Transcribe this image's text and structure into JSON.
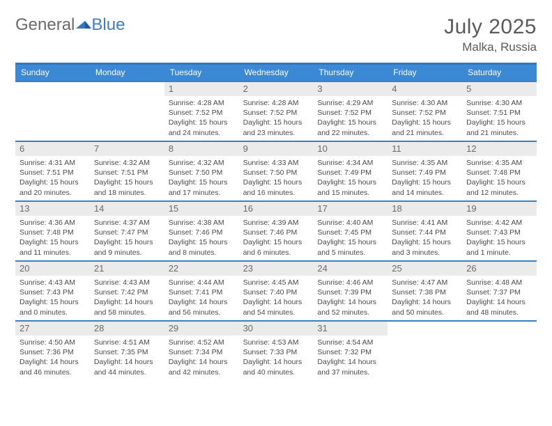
{
  "brand": {
    "part1": "General",
    "part2": "Blue"
  },
  "title": "July 2025",
  "location": "Malka, Russia",
  "colors": {
    "header_bg": "#3b88d4",
    "accent": "#2f78c4",
    "daynum_bg": "#ebebeb",
    "text": "#4a4a4a",
    "muted": "#6a6a6a"
  },
  "day_names": [
    "Sunday",
    "Monday",
    "Tuesday",
    "Wednesday",
    "Thursday",
    "Friday",
    "Saturday"
  ],
  "weeks": [
    [
      null,
      null,
      {
        "n": "1",
        "sunrise": "Sunrise: 4:28 AM",
        "sunset": "Sunset: 7:52 PM",
        "day1": "Daylight: 15 hours",
        "day2": "and 24 minutes."
      },
      {
        "n": "2",
        "sunrise": "Sunrise: 4:28 AM",
        "sunset": "Sunset: 7:52 PM",
        "day1": "Daylight: 15 hours",
        "day2": "and 23 minutes."
      },
      {
        "n": "3",
        "sunrise": "Sunrise: 4:29 AM",
        "sunset": "Sunset: 7:52 PM",
        "day1": "Daylight: 15 hours",
        "day2": "and 22 minutes."
      },
      {
        "n": "4",
        "sunrise": "Sunrise: 4:30 AM",
        "sunset": "Sunset: 7:52 PM",
        "day1": "Daylight: 15 hours",
        "day2": "and 21 minutes."
      },
      {
        "n": "5",
        "sunrise": "Sunrise: 4:30 AM",
        "sunset": "Sunset: 7:51 PM",
        "day1": "Daylight: 15 hours",
        "day2": "and 21 minutes."
      }
    ],
    [
      {
        "n": "6",
        "sunrise": "Sunrise: 4:31 AM",
        "sunset": "Sunset: 7:51 PM",
        "day1": "Daylight: 15 hours",
        "day2": "and 20 minutes."
      },
      {
        "n": "7",
        "sunrise": "Sunrise: 4:32 AM",
        "sunset": "Sunset: 7:51 PM",
        "day1": "Daylight: 15 hours",
        "day2": "and 18 minutes."
      },
      {
        "n": "8",
        "sunrise": "Sunrise: 4:32 AM",
        "sunset": "Sunset: 7:50 PM",
        "day1": "Daylight: 15 hours",
        "day2": "and 17 minutes."
      },
      {
        "n": "9",
        "sunrise": "Sunrise: 4:33 AM",
        "sunset": "Sunset: 7:50 PM",
        "day1": "Daylight: 15 hours",
        "day2": "and 16 minutes."
      },
      {
        "n": "10",
        "sunrise": "Sunrise: 4:34 AM",
        "sunset": "Sunset: 7:49 PM",
        "day1": "Daylight: 15 hours",
        "day2": "and 15 minutes."
      },
      {
        "n": "11",
        "sunrise": "Sunrise: 4:35 AM",
        "sunset": "Sunset: 7:49 PM",
        "day1": "Daylight: 15 hours",
        "day2": "and 14 minutes."
      },
      {
        "n": "12",
        "sunrise": "Sunrise: 4:35 AM",
        "sunset": "Sunset: 7:48 PM",
        "day1": "Daylight: 15 hours",
        "day2": "and 12 minutes."
      }
    ],
    [
      {
        "n": "13",
        "sunrise": "Sunrise: 4:36 AM",
        "sunset": "Sunset: 7:48 PM",
        "day1": "Daylight: 15 hours",
        "day2": "and 11 minutes."
      },
      {
        "n": "14",
        "sunrise": "Sunrise: 4:37 AM",
        "sunset": "Sunset: 7:47 PM",
        "day1": "Daylight: 15 hours",
        "day2": "and 9 minutes."
      },
      {
        "n": "15",
        "sunrise": "Sunrise: 4:38 AM",
        "sunset": "Sunset: 7:46 PM",
        "day1": "Daylight: 15 hours",
        "day2": "and 8 minutes."
      },
      {
        "n": "16",
        "sunrise": "Sunrise: 4:39 AM",
        "sunset": "Sunset: 7:46 PM",
        "day1": "Daylight: 15 hours",
        "day2": "and 6 minutes."
      },
      {
        "n": "17",
        "sunrise": "Sunrise: 4:40 AM",
        "sunset": "Sunset: 7:45 PM",
        "day1": "Daylight: 15 hours",
        "day2": "and 5 minutes."
      },
      {
        "n": "18",
        "sunrise": "Sunrise: 4:41 AM",
        "sunset": "Sunset: 7:44 PM",
        "day1": "Daylight: 15 hours",
        "day2": "and 3 minutes."
      },
      {
        "n": "19",
        "sunrise": "Sunrise: 4:42 AM",
        "sunset": "Sunset: 7:43 PM",
        "day1": "Daylight: 15 hours",
        "day2": "and 1 minute."
      }
    ],
    [
      {
        "n": "20",
        "sunrise": "Sunrise: 4:43 AM",
        "sunset": "Sunset: 7:43 PM",
        "day1": "Daylight: 15 hours",
        "day2": "and 0 minutes."
      },
      {
        "n": "21",
        "sunrise": "Sunrise: 4:43 AM",
        "sunset": "Sunset: 7:42 PM",
        "day1": "Daylight: 14 hours",
        "day2": "and 58 minutes."
      },
      {
        "n": "22",
        "sunrise": "Sunrise: 4:44 AM",
        "sunset": "Sunset: 7:41 PM",
        "day1": "Daylight: 14 hours",
        "day2": "and 56 minutes."
      },
      {
        "n": "23",
        "sunrise": "Sunrise: 4:45 AM",
        "sunset": "Sunset: 7:40 PM",
        "day1": "Daylight: 14 hours",
        "day2": "and 54 minutes."
      },
      {
        "n": "24",
        "sunrise": "Sunrise: 4:46 AM",
        "sunset": "Sunset: 7:39 PM",
        "day1": "Daylight: 14 hours",
        "day2": "and 52 minutes."
      },
      {
        "n": "25",
        "sunrise": "Sunrise: 4:47 AM",
        "sunset": "Sunset: 7:38 PM",
        "day1": "Daylight: 14 hours",
        "day2": "and 50 minutes."
      },
      {
        "n": "26",
        "sunrise": "Sunrise: 4:48 AM",
        "sunset": "Sunset: 7:37 PM",
        "day1": "Daylight: 14 hours",
        "day2": "and 48 minutes."
      }
    ],
    [
      {
        "n": "27",
        "sunrise": "Sunrise: 4:50 AM",
        "sunset": "Sunset: 7:36 PM",
        "day1": "Daylight: 14 hours",
        "day2": "and 46 minutes."
      },
      {
        "n": "28",
        "sunrise": "Sunrise: 4:51 AM",
        "sunset": "Sunset: 7:35 PM",
        "day1": "Daylight: 14 hours",
        "day2": "and 44 minutes."
      },
      {
        "n": "29",
        "sunrise": "Sunrise: 4:52 AM",
        "sunset": "Sunset: 7:34 PM",
        "day1": "Daylight: 14 hours",
        "day2": "and 42 minutes."
      },
      {
        "n": "30",
        "sunrise": "Sunrise: 4:53 AM",
        "sunset": "Sunset: 7:33 PM",
        "day1": "Daylight: 14 hours",
        "day2": "and 40 minutes."
      },
      {
        "n": "31",
        "sunrise": "Sunrise: 4:54 AM",
        "sunset": "Sunset: 7:32 PM",
        "day1": "Daylight: 14 hours",
        "day2": "and 37 minutes."
      },
      null,
      null
    ]
  ]
}
